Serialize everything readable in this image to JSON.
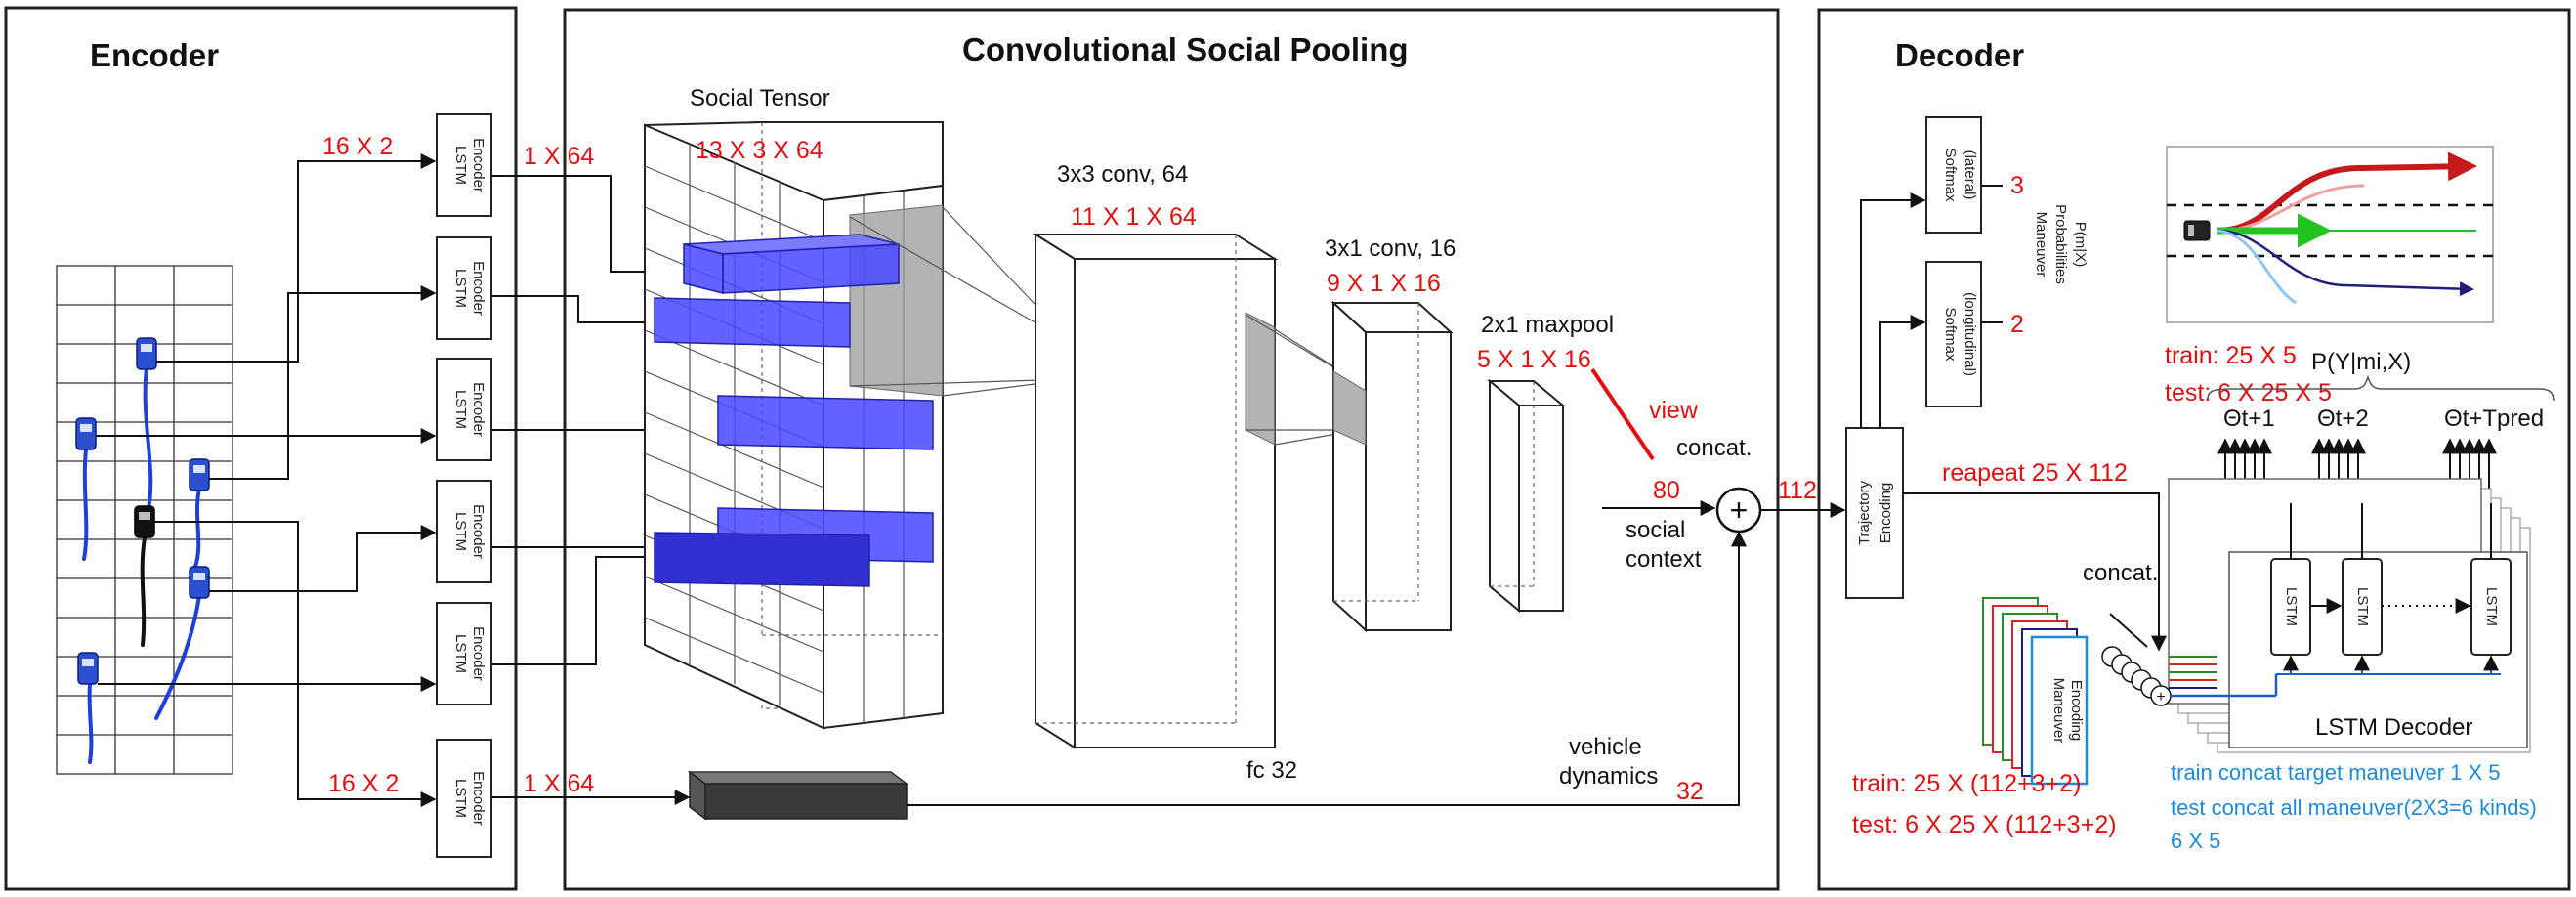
{
  "encoder": {
    "title": "Encoder",
    "lstm_label_line1": "LSTM",
    "lstm_label_line2": "Encoder",
    "input_dim_top": "16 X 2",
    "input_dim_bottom": "16 X 2",
    "output_dim_top": "1 X 64",
    "output_dim_bottom": "1 X 64"
  },
  "csp": {
    "title": "Convolutional Social Pooling",
    "social_tensor_label": "Social Tensor",
    "social_tensor_dim": "13 X 3 X 64",
    "conv1_label": "3x3 conv, 64",
    "conv1_dim": "11 X 1 X 64",
    "conv2_label": "3x1 conv, 16",
    "conv2_dim": "9 X 1 X 16",
    "pool_label": "2x1 maxpool",
    "pool_dim": "5 X 1 X 16",
    "view_label": "view",
    "concat_label": "concat.",
    "social_dim": "80",
    "social_context_line1": "social",
    "social_context_line2": "context",
    "fc_label": "fc 32",
    "vehicle_dynamics_line1": "vehicle",
    "vehicle_dynamics_line2": "dynamics",
    "dynamics_dim": "32",
    "plus_symbol": "+",
    "concat_dim": "112"
  },
  "decoder": {
    "title": "Decoder",
    "softmax_lat_line1": "Softmax",
    "softmax_lat_line2": "(lateral)",
    "softmax_lon_line1": "Softmax",
    "softmax_lon_line2": "(longitudinal)",
    "lat_dim": "3",
    "lon_dim": "2",
    "maneuver_prob_line1": "Maneuver",
    "maneuver_prob_line2": "Probabilities",
    "maneuver_prob_line3": "P(m|X)",
    "traj_enc_line1": "Trajectory",
    "traj_enc_line2": "Encoding",
    "repeat_label": "reapeat   25 X 112",
    "train_out": "train: 25 X 5",
    "test_out": "test: 6 X 25 X 5",
    "prob_label": "P(Y|mi,X)",
    "theta1": "Θt+1",
    "theta2": "Θt+2",
    "theta_last": "Θt+Tpred",
    "ellipsis": "....",
    "concat_small": "concat.",
    "maneuver_enc_line1": "Maneuver",
    "maneuver_enc_line2": "Encoding",
    "lstm_cell": "LSTM",
    "lstm_decoder": "LSTM Decoder",
    "train_in": "train: 25 X (112+3+2)",
    "test_in": "test:  6 X 25 X (112+3+2)",
    "blue_line1": "train concat target maneuver 1 X 5",
    "blue_line2": "test concat all maneuver(2X3=6 kinds)",
    "blue_line3": "6 X 5"
  },
  "colors": {
    "red_annotation": "#e01010",
    "blue_annotation": "#1e8ad6",
    "slab_blue": "#4747ff",
    "traj_red": "#c41a1a",
    "traj_green": "#22c41f",
    "traj_navy": "#1f1f7a"
  },
  "icons": {
    "vehicle": "car-icon",
    "ego_vehicle": "ego-car-icon"
  }
}
